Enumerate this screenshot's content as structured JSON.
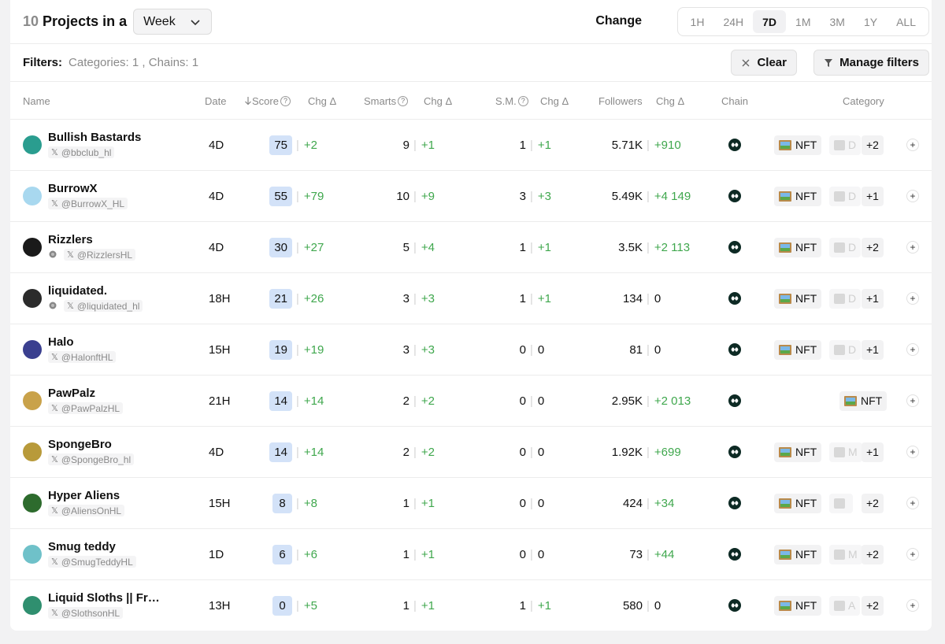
{
  "header": {
    "count": "10",
    "title_text": "Projects in a",
    "period_selected": "Week",
    "change_label": "Change",
    "timeframes": [
      "1H",
      "24H",
      "7D",
      "1M",
      "3M",
      "1Y",
      "ALL"
    ],
    "active_timeframe": "7D"
  },
  "filters": {
    "label": "Filters:",
    "value": "Categories: 1 , Chains: 1",
    "clear_label": "Clear",
    "manage_label": "Manage filters"
  },
  "columns": {
    "name": "Name",
    "date": "Date",
    "score": "Score",
    "chg": "Chg",
    "smarts": "Smarts",
    "sm": "S.M.",
    "followers": "Followers",
    "chain": "Chain",
    "category": "Category"
  },
  "rows": [
    {
      "name": "Bullish Bastards",
      "handle": "@bbclub_hl",
      "web": false,
      "date": "4D",
      "score": "75",
      "score_chg": "+2",
      "smarts": "9",
      "smarts_chg": "+1",
      "sm": "1",
      "sm_chg": "+1",
      "followers": "5.71K",
      "followers_chg": "+910",
      "cat1": "NFT",
      "cat2": "D",
      "extra": "+2",
      "avatar_color": "#2a9d8f"
    },
    {
      "name": "BurrowX",
      "handle": "@BurrowX_HL",
      "web": false,
      "date": "4D",
      "score": "55",
      "score_chg": "+79",
      "smarts": "10",
      "smarts_chg": "+9",
      "sm": "3",
      "sm_chg": "+3",
      "followers": "5.49K",
      "followers_chg": "+4 149",
      "cat1": "NFT",
      "cat2": "D",
      "extra": "+1",
      "avatar_color": "#a8d8ef"
    },
    {
      "name": "Rizzlers",
      "handle": "@RizzlersHL",
      "web": true,
      "date": "4D",
      "score": "30",
      "score_chg": "+27",
      "smarts": "5",
      "smarts_chg": "+4",
      "sm": "1",
      "sm_chg": "+1",
      "followers": "3.5K",
      "followers_chg": "+2 113",
      "cat1": "NFT",
      "cat2": "D",
      "extra": "+2",
      "avatar_color": "#1a1a1a"
    },
    {
      "name": "liquidated.",
      "handle": "@liquidated_hl",
      "web": true,
      "date": "18H",
      "score": "21",
      "score_chg": "+26",
      "smarts": "3",
      "smarts_chg": "+3",
      "sm": "1",
      "sm_chg": "+1",
      "followers": "134",
      "followers_chg": "0",
      "cat1": "NFT",
      "cat2": "D",
      "extra": "+1",
      "avatar_color": "#2b2b2b"
    },
    {
      "name": "Halo",
      "handle": "@HalonftHL",
      "web": false,
      "date": "15H",
      "score": "19",
      "score_chg": "+19",
      "smarts": "3",
      "smarts_chg": "+3",
      "sm": "0",
      "sm_chg": "0",
      "followers": "81",
      "followers_chg": "0",
      "cat1": "NFT",
      "cat2": "D",
      "extra": "+1",
      "avatar_color": "#3a3f8f"
    },
    {
      "name": "PawPalz",
      "handle": "@PawPalzHL",
      "web": false,
      "date": "21H",
      "score": "14",
      "score_chg": "+14",
      "smarts": "2",
      "smarts_chg": "+2",
      "sm": "0",
      "sm_chg": "0",
      "followers": "2.95K",
      "followers_chg": "+2 013",
      "cat1": "NFT",
      "cat2": "",
      "extra": "",
      "avatar_color": "#c9a24a"
    },
    {
      "name": "SpongeBro",
      "handle": "@SpongeBro_hl",
      "web": false,
      "date": "4D",
      "score": "14",
      "score_chg": "+14",
      "smarts": "2",
      "smarts_chg": "+2",
      "sm": "0",
      "sm_chg": "0",
      "followers": "1.92K",
      "followers_chg": "+699",
      "cat1": "NFT",
      "cat2": "M",
      "extra": "+1",
      "avatar_color": "#b89a3a"
    },
    {
      "name": "Hyper Aliens",
      "handle": "@AliensOnHL",
      "web": false,
      "date": "15H",
      "score": "8",
      "score_chg": "+8",
      "smarts": "1",
      "smarts_chg": "+1",
      "sm": "0",
      "sm_chg": "0",
      "followers": "424",
      "followers_chg": "+34",
      "cat1": "NFT",
      "cat2": "",
      "extra": "+2",
      "avatar_color": "#2d6b2d"
    },
    {
      "name": "Smug teddy",
      "handle": "@SmugTeddyHL",
      "web": false,
      "date": "1D",
      "score": "6",
      "score_chg": "+6",
      "smarts": "1",
      "smarts_chg": "+1",
      "sm": "0",
      "sm_chg": "0",
      "followers": "73",
      "followers_chg": "+44",
      "cat1": "NFT",
      "cat2": "M",
      "extra": "+2",
      "avatar_color": "#6fc1c9"
    },
    {
      "name": "Liquid Sloths || Free...",
      "handle": "@SlothsonHL",
      "web": false,
      "date": "13H",
      "score": "0",
      "score_chg": "+5",
      "smarts": "1",
      "smarts_chg": "+1",
      "sm": "1",
      "sm_chg": "+1",
      "followers": "580",
      "followers_chg": "0",
      "cat1": "NFT",
      "cat2": "A",
      "extra": "+2",
      "avatar_color": "#2f8f6f"
    }
  ],
  "colors": {
    "positive": "#3fa74d",
    "score_bg": "#d3e2f8",
    "chain": "#0d2a24"
  }
}
